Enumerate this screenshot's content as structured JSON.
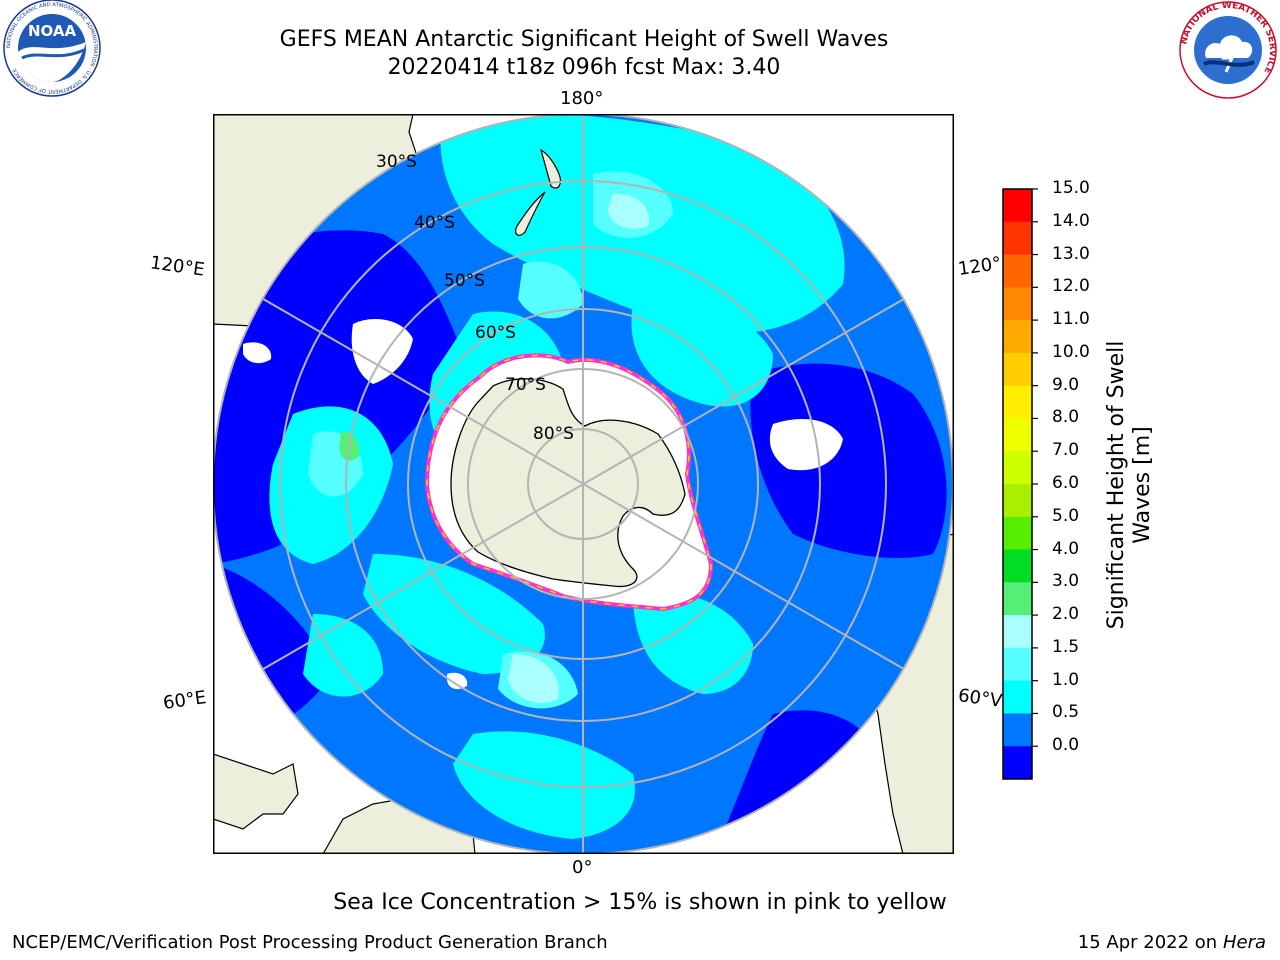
{
  "header": {
    "title_line1": "GEFS MEAN Antarctic Significant Height of Swell Waves",
    "title_line2": "20220414 t18z 096h fcst   Max: 3.40"
  },
  "logos": {
    "noaa_text": "NOAA",
    "noaa_ring_text": "NATIONAL OCEANIC AND ATMOSPHERIC ADMINISTRATION · U.S. DEPARTMENT OF COMMERCE",
    "nws_ring_text": "NATIONAL WEATHER SERVICE"
  },
  "map": {
    "projection": "south-polar-stereographic",
    "longitude_labels": {
      "top": "180°",
      "bottom": "0°",
      "left_upper": "120°E",
      "left_lower": "60°E",
      "right_upper": "120°",
      "right_lower": "60°V"
    },
    "latitude_labels": [
      "30°S",
      "40°S",
      "50°S",
      "60°S",
      "70°S",
      "80°S"
    ],
    "colors": {
      "land": "#eeeedc",
      "ice": "#ffffff",
      "grid": "#b4b4b4",
      "coast": "#000000"
    }
  },
  "colorbar": {
    "ticks": [
      "15.0",
      "14.0",
      "13.0",
      "12.0",
      "11.0",
      "10.0",
      "9.0",
      "8.0",
      "7.0",
      "6.0",
      "5.0",
      "4.0",
      "3.0",
      "2.0",
      "1.5",
      "1.0",
      "0.5",
      "0.0"
    ],
    "colors_top_to_bottom": [
      "#ff0000",
      "#ff3300",
      "#ff6600",
      "#ff8800",
      "#ffaa00",
      "#ffcc00",
      "#ffee00",
      "#eeff00",
      "#ccff00",
      "#aaee00",
      "#55ee00",
      "#00dd22",
      "#55ee77",
      "#aaffff",
      "#55ffff",
      "#00ffff",
      "#0077ff",
      "#0000ff"
    ],
    "label_line1": "Significant Height of Swell",
    "label_line2": "Waves [m]"
  },
  "footer": {
    "note": "Sea Ice Concentration > 15% is shown in pink to yellow",
    "left": "NCEP/EMC/Verification Post Processing Product Generation Branch",
    "right_prefix": "15 Apr 2022 on ",
    "right_machine": "Hera"
  }
}
